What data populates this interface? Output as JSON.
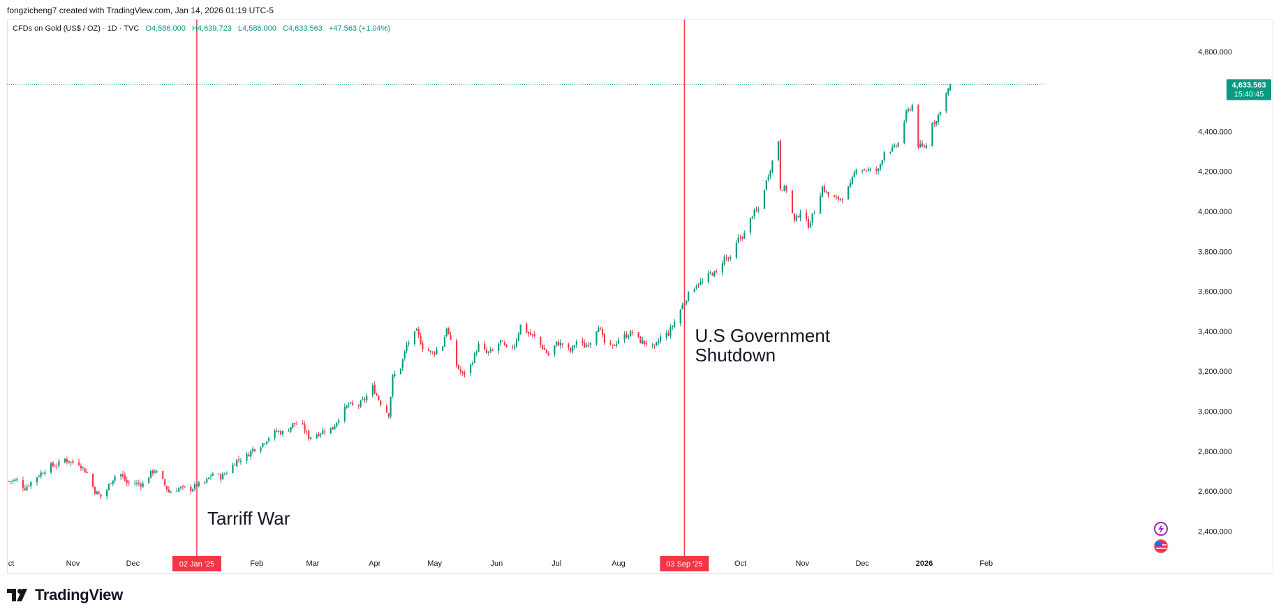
{
  "header": {
    "attribution": "fongzicheng7 created with TradingView.com, Jan 14, 2026 01:19 UTC-5"
  },
  "legend": {
    "symbol": "CFDs on Gold (US$ / OZ) · 1D · TVC",
    "open": "O4,586.000",
    "high": "H4,639.723",
    "low": "L4,586.000",
    "close": "C4,633.563",
    "change": "+47.563 (+1.04%)"
  },
  "brand": {
    "name": "TradingView"
  },
  "colors": {
    "up": "#089981",
    "down": "#f23645",
    "event_line": "#f23645",
    "price_tag": "#089981",
    "grid": "#e0e3eb"
  },
  "chart_data": {
    "type": "candlestick",
    "title": "CFDs on Gold (US$ / OZ) · 1D · TVC",
    "ylim": [
      2300,
      4960
    ],
    "y_ticks": [
      2400,
      2600,
      2800,
      3000,
      3200,
      3400,
      3600,
      3800,
      4000,
      4200,
      4400,
      4800
    ],
    "y_tick_labels": [
      "2,400.000",
      "2,600.000",
      "2,800.000",
      "3,000.000",
      "3,200.000",
      "3,400.000",
      "3,600.000",
      "3,800.000",
      "4,000.000",
      "4,200.000",
      "4,400.000",
      "4,800.000"
    ],
    "x_range": [
      "2024-09-29",
      "2026-02-28"
    ],
    "x_ticks": [
      {
        "date": "2024-10-01",
        "label": "ct"
      },
      {
        "date": "2024-11-01",
        "label": "Nov"
      },
      {
        "date": "2024-12-01",
        "label": "Dec"
      },
      {
        "date": "2025-02-01",
        "label": "Feb"
      },
      {
        "date": "2025-03-01",
        "label": "Mar"
      },
      {
        "date": "2025-04-01",
        "label": "Apr"
      },
      {
        "date": "2025-05-01",
        "label": "May"
      },
      {
        "date": "2025-06-01",
        "label": "Jun"
      },
      {
        "date": "2025-07-01",
        "label": "Jul"
      },
      {
        "date": "2025-08-01",
        "label": "Aug"
      },
      {
        "date": "2025-10-01",
        "label": "Oct"
      },
      {
        "date": "2025-11-01",
        "label": "Nov"
      },
      {
        "date": "2025-12-01",
        "label": "Dec"
      },
      {
        "date": "2026-01-01",
        "label": "2026"
      },
      {
        "date": "2026-02-01",
        "label": "Feb"
      }
    ],
    "series": [
      {
        "values": [
          [
            "2024-09-30",
            2650
          ],
          [
            "2024-10-04",
            2655
          ],
          [
            "2024-10-08",
            2615
          ],
          [
            "2024-10-12",
            2655
          ],
          [
            "2024-10-16",
            2690
          ],
          [
            "2024-10-20",
            2725
          ],
          [
            "2024-10-24",
            2730
          ],
          [
            "2024-10-28",
            2760
          ],
          [
            "2024-10-31",
            2745
          ],
          [
            "2024-11-04",
            2740
          ],
          [
            "2024-11-08",
            2690
          ],
          [
            "2024-11-12",
            2600
          ],
          [
            "2024-11-16",
            2565
          ],
          [
            "2024-11-20",
            2650
          ],
          [
            "2024-11-24",
            2700
          ],
          [
            "2024-11-28",
            2640
          ],
          [
            "2024-12-02",
            2640
          ],
          [
            "2024-12-06",
            2635
          ],
          [
            "2024-12-10",
            2690
          ],
          [
            "2024-12-12",
            2705
          ],
          [
            "2024-12-16",
            2650
          ],
          [
            "2024-12-19",
            2595
          ],
          [
            "2024-12-24",
            2615
          ],
          [
            "2024-12-30",
            2610
          ],
          [
            "2025-01-02",
            2630
          ],
          [
            "2025-01-06",
            2640
          ],
          [
            "2025-01-10",
            2690
          ],
          [
            "2025-01-14",
            2670
          ],
          [
            "2025-01-18",
            2705
          ],
          [
            "2025-01-22",
            2755
          ],
          [
            "2025-01-26",
            2765
          ],
          [
            "2025-01-30",
            2810
          ],
          [
            "2025-02-03",
            2830
          ],
          [
            "2025-02-07",
            2870
          ],
          [
            "2025-02-11",
            2900
          ],
          [
            "2025-02-15",
            2890
          ],
          [
            "2025-02-19",
            2935
          ],
          [
            "2025-02-23",
            2940
          ],
          [
            "2025-02-27",
            2870
          ],
          [
            "2025-03-03",
            2885
          ],
          [
            "2025-03-07",
            2905
          ],
          [
            "2025-03-11",
            2915
          ],
          [
            "2025-03-15",
            2985
          ],
          [
            "2025-03-19",
            3035
          ],
          [
            "2025-03-23",
            3020
          ],
          [
            "2025-03-27",
            3060
          ],
          [
            "2025-03-31",
            3120
          ],
          [
            "2025-04-04",
            3040
          ],
          [
            "2025-04-08",
            2985
          ],
          [
            "2025-04-10",
            3170
          ],
          [
            "2025-04-14",
            3220
          ],
          [
            "2025-04-17",
            3330
          ],
          [
            "2025-04-22",
            3400
          ],
          [
            "2025-04-25",
            3320
          ],
          [
            "2025-04-30",
            3290
          ],
          [
            "2025-05-05",
            3330
          ],
          [
            "2025-05-07",
            3420
          ],
          [
            "2025-05-12",
            3230
          ],
          [
            "2025-05-15",
            3180
          ],
          [
            "2025-05-19",
            3230
          ],
          [
            "2025-05-23",
            3330
          ],
          [
            "2025-05-27",
            3290
          ],
          [
            "2025-05-30",
            3300
          ],
          [
            "2025-06-03",
            3350
          ],
          [
            "2025-06-06",
            3310
          ],
          [
            "2025-06-10",
            3330
          ],
          [
            "2025-06-13",
            3430
          ],
          [
            "2025-06-17",
            3390
          ],
          [
            "2025-06-20",
            3370
          ],
          [
            "2025-06-24",
            3320
          ],
          [
            "2025-06-27",
            3280
          ],
          [
            "2025-07-01",
            3340
          ],
          [
            "2025-07-04",
            3335
          ],
          [
            "2025-07-08",
            3300
          ],
          [
            "2025-07-11",
            3350
          ],
          [
            "2025-07-15",
            3325
          ],
          [
            "2025-07-18",
            3350
          ],
          [
            "2025-07-22",
            3430
          ],
          [
            "2025-07-25",
            3340
          ],
          [
            "2025-07-29",
            3320
          ],
          [
            "2025-08-01",
            3360
          ],
          [
            "2025-08-05",
            3380
          ],
          [
            "2025-08-08",
            3395
          ],
          [
            "2025-08-12",
            3350
          ],
          [
            "2025-08-15",
            3340
          ],
          [
            "2025-08-19",
            3315
          ],
          [
            "2025-08-22",
            3370
          ],
          [
            "2025-08-26",
            3390
          ],
          [
            "2025-08-29",
            3445
          ],
          [
            "2025-09-02",
            3530
          ],
          [
            "2025-09-05",
            3585
          ],
          [
            "2025-09-09",
            3635
          ],
          [
            "2025-09-12",
            3645
          ],
          [
            "2025-09-16",
            3690
          ],
          [
            "2025-09-19",
            3690
          ],
          [
            "2025-09-23",
            3770
          ],
          [
            "2025-09-26",
            3760
          ],
          [
            "2025-09-30",
            3860
          ],
          [
            "2025-10-03",
            3885
          ],
          [
            "2025-10-07",
            3985
          ],
          [
            "2025-10-10",
            4010
          ],
          [
            "2025-10-14",
            4150
          ],
          [
            "2025-10-17",
            4250
          ],
          [
            "2025-10-20",
            4355
          ],
          [
            "2025-10-21",
            4120
          ],
          [
            "2025-10-24",
            4110
          ],
          [
            "2025-10-28",
            3950
          ],
          [
            "2025-10-31",
            4000
          ],
          [
            "2025-11-04",
            3930
          ],
          [
            "2025-11-07",
            4000
          ],
          [
            "2025-11-11",
            4120
          ],
          [
            "2025-11-14",
            4080
          ],
          [
            "2025-11-18",
            4060
          ],
          [
            "2025-11-21",
            4070
          ],
          [
            "2025-11-25",
            4130
          ],
          [
            "2025-11-28",
            4220
          ],
          [
            "2025-12-02",
            4210
          ],
          [
            "2025-12-05",
            4205
          ],
          [
            "2025-12-09",
            4205
          ],
          [
            "2025-12-12",
            4300
          ],
          [
            "2025-12-16",
            4310
          ],
          [
            "2025-12-19",
            4340
          ],
          [
            "2025-12-23",
            4490
          ],
          [
            "2025-12-26",
            4530
          ],
          [
            "2025-12-29",
            4330
          ],
          [
            "2025-12-31",
            4320
          ],
          [
            "2026-01-02",
            4330
          ],
          [
            "2026-01-05",
            4450
          ],
          [
            "2026-01-07",
            4450
          ],
          [
            "2026-01-09",
            4510
          ],
          [
            "2026-01-12",
            4590
          ],
          [
            "2026-01-14",
            4633.563
          ]
        ]
      }
    ],
    "current_price": {
      "value": 4633.563,
      "label": "4,633.563",
      "countdown": "15:40:45"
    },
    "events": [
      {
        "date": "2025-01-02",
        "tag": "02 Jan '25",
        "label": "Tarriff War"
      },
      {
        "date": "2025-09-03",
        "tag": "03 Sep '25",
        "label": "U.S Government Shutdown"
      }
    ],
    "grid": false
  }
}
